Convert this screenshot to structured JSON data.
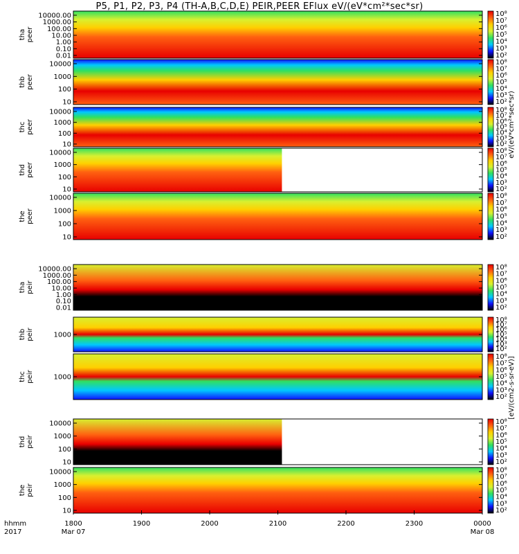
{
  "chart_data": {
    "type": "heatmap",
    "title": "P5, P1, P2, P3, P4 (TH-A,B,C,D,E) PEIR,PEER EFlux eV/(eV*cm²*sec*sr)",
    "x_time_labels": [
      "1800",
      "1900",
      "2000",
      "2100",
      "2200",
      "2300",
      "0000"
    ],
    "x_date_labels": [
      {
        "at": "1800",
        "text": "Mar 07"
      },
      {
        "at": "0000",
        "text": "Mar 08"
      }
    ],
    "x_axis_caption": [
      "hhmm",
      "2017"
    ],
    "colorbar_tick_labels": [
      "10⁸",
      "10⁷",
      "10⁶",
      "10⁵",
      "10⁴",
      "10³",
      "10²"
    ],
    "colorbar_caption_upper": "eV/(eV*cm²*sec*sr)",
    "colorbar_caption_lower": "[eV/(cm2-s-sr-eV)]",
    "colormap": [
      "#000000",
      "#1010ff",
      "#00c8ff",
      "#30e060",
      "#d8f030",
      "#ffd000",
      "#ff6010",
      "#e80000"
    ],
    "panels": [
      {
        "id": "tha-peer",
        "ylabel": [
          "tha",
          "peer"
        ],
        "yticks": [
          "10000.00",
          "1000.00",
          "100.00",
          "10.00",
          "1.00",
          "0.10",
          "0.01"
        ]
      },
      {
        "id": "thb-peer",
        "ylabel": [
          "thb",
          "peer"
        ],
        "yticks": [
          "10000",
          "1000",
          "100",
          "10"
        ]
      },
      {
        "id": "thc-peer",
        "ylabel": [
          "thc",
          "peer"
        ],
        "yticks": [
          "10000",
          "1000",
          "100",
          "10"
        ]
      },
      {
        "id": "thd-peer",
        "ylabel": [
          "thd",
          "peer"
        ],
        "yticks": [
          "10000",
          "1000",
          "100",
          "10"
        ]
      },
      {
        "id": "the-peer",
        "ylabel": [
          "the",
          "peer"
        ],
        "yticks": [
          "10000",
          "1000",
          "100",
          "10"
        ]
      },
      {
        "id": "tha-peir",
        "ylabel": [
          "tha",
          "peir"
        ],
        "yticks": [
          "10000.00",
          "1000.00",
          "100.00",
          "10.00",
          "1.00",
          "0.10",
          "0.01"
        ]
      },
      {
        "id": "thb-peir",
        "ylabel": [
          "thb",
          "peir"
        ],
        "yticks": [
          "1000"
        ]
      },
      {
        "id": "thc-peir",
        "ylabel": [
          "thc",
          "peir"
        ],
        "yticks": [
          "1000"
        ]
      },
      {
        "id": "thd-peir",
        "ylabel": [
          "thd",
          "peir"
        ],
        "yticks": [
          "10000",
          "1000",
          "100",
          "10"
        ]
      },
      {
        "id": "the-peir",
        "ylabel": [
          "the",
          "peir"
        ],
        "yticks": [
          "10000",
          "1000",
          "100",
          "10"
        ]
      }
    ]
  }
}
